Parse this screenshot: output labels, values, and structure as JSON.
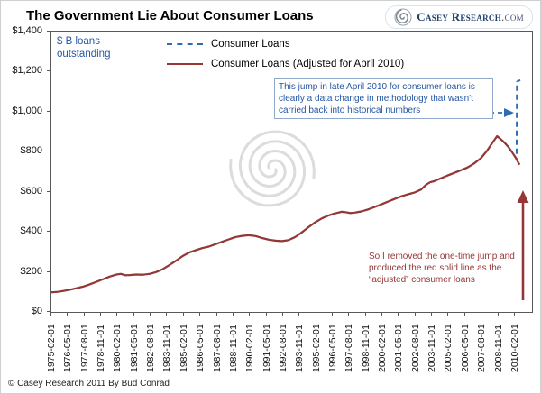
{
  "header": {
    "title": "The Government Lie About Consumer Loans",
    "logo_name": "Casey Research",
    "logo_tld": ".com"
  },
  "footer": {
    "copyright": "© Casey Research 2011 By Bud Conrad"
  },
  "chart_data": {
    "type": "line",
    "title": "The Government Lie About Consumer Loans",
    "ylabel": "$ B loans outstanding",
    "ylabel_lines": [
      "$ B loans",
      "outstanding"
    ],
    "units": "$ billions",
    "ylim": [
      0,
      1400
    ],
    "x_range_years": [
      1975.083,
      2010.5
    ],
    "grid": false,
    "legend_position": "top-inside",
    "y_ticks": [
      {
        "value": 1400,
        "label": "$1,400"
      },
      {
        "value": 1200,
        "label": "$1,200"
      },
      {
        "value": 1000,
        "label": "$1,000"
      },
      {
        "value": 800,
        "label": "$800"
      },
      {
        "value": 600,
        "label": "$600"
      },
      {
        "value": 400,
        "label": "$400"
      },
      {
        "value": 200,
        "label": "$200"
      },
      {
        "value": 0,
        "label": "$0"
      }
    ],
    "x_ticks": [
      "1975-02-01",
      "1976-05-01",
      "1977-08-01",
      "1978-11-01",
      "1980-02-01",
      "1981-05-01",
      "1982-08-01",
      "1983-11-01",
      "1985-02-01",
      "1986-05-01",
      "1987-08-01",
      "1988-11-01",
      "1990-02-01",
      "1991-05-01",
      "1992-08-01",
      "1993-11-01",
      "1995-02-01",
      "1996-05-01",
      "1997-08-01",
      "1998-11-01",
      "2000-02-01",
      "2001-05-01",
      "2002-08-01",
      "2003-11-01",
      "2005-02-01",
      "2006-05-01",
      "2007-08-01",
      "2008-11-01",
      "2010-02-01"
    ],
    "legend": [
      {
        "label": "Consumer Loans",
        "color": "#2e6db4",
        "style": "dashed"
      },
      {
        "label": "Consumer Loans (Adjusted for April 2010)",
        "color": "#953735",
        "style": "solid"
      }
    ],
    "shared_history_points": [
      [
        1975.08,
        98
      ],
      [
        1975.5,
        100
      ],
      [
        1976.0,
        105
      ],
      [
        1976.5,
        111
      ],
      [
        1977.0,
        119
      ],
      [
        1977.5,
        127
      ],
      [
        1978.0,
        138
      ],
      [
        1978.5,
        151
      ],
      [
        1979.0,
        164
      ],
      [
        1979.5,
        177
      ],
      [
        1980.0,
        187
      ],
      [
        1980.33,
        190
      ],
      [
        1980.67,
        183
      ],
      [
        1981.0,
        184
      ],
      [
        1981.5,
        187
      ],
      [
        1982.0,
        186
      ],
      [
        1982.5,
        190
      ],
      [
        1983.0,
        199
      ],
      [
        1983.5,
        214
      ],
      [
        1984.0,
        234
      ],
      [
        1984.5,
        256
      ],
      [
        1985.0,
        279
      ],
      [
        1985.5,
        297
      ],
      [
        1986.0,
        309
      ],
      [
        1986.5,
        319
      ],
      [
        1987.0,
        327
      ],
      [
        1987.5,
        339
      ],
      [
        1988.0,
        351
      ],
      [
        1988.5,
        363
      ],
      [
        1989.0,
        374
      ],
      [
        1989.5,
        380
      ],
      [
        1990.0,
        383
      ],
      [
        1990.5,
        379
      ],
      [
        1991.0,
        369
      ],
      [
        1991.5,
        361
      ],
      [
        1992.0,
        356
      ],
      [
        1992.5,
        354
      ],
      [
        1993.0,
        359
      ],
      [
        1993.5,
        374
      ],
      [
        1994.0,
        397
      ],
      [
        1994.5,
        423
      ],
      [
        1995.0,
        447
      ],
      [
        1995.5,
        467
      ],
      [
        1996.0,
        481
      ],
      [
        1996.5,
        492
      ],
      [
        1997.0,
        500
      ],
      [
        1997.33,
        498
      ],
      [
        1997.67,
        494
      ],
      [
        1998.0,
        496
      ],
      [
        1998.5,
        502
      ],
      [
        1999.0,
        512
      ],
      [
        1999.5,
        524
      ],
      [
        2000.0,
        537
      ],
      [
        2000.5,
        551
      ],
      [
        2001.0,
        564
      ],
      [
        2001.5,
        577
      ],
      [
        2002.0,
        587
      ],
      [
        2002.5,
        596
      ],
      [
        2003.0,
        611
      ],
      [
        2003.4,
        636
      ],
      [
        2003.7,
        648
      ],
      [
        2004.0,
        653
      ],
      [
        2004.5,
        667
      ],
      [
        2005.0,
        681
      ],
      [
        2005.5,
        694
      ],
      [
        2006.0,
        707
      ],
      [
        2006.5,
        721
      ],
      [
        2007.0,
        741
      ],
      [
        2007.5,
        766
      ],
      [
        2008.0,
        806
      ],
      [
        2008.4,
        846
      ],
      [
        2008.75,
        878
      ],
      [
        2009.0,
        864
      ],
      [
        2009.3,
        846
      ],
      [
        2009.6,
        824
      ],
      [
        2009.9,
        796
      ],
      [
        2010.08,
        778
      ],
      [
        2010.17,
        768
      ]
    ],
    "series": [
      {
        "name": "Consumer Loans",
        "style": "dashed",
        "color": "#2e6db4",
        "tail_points": [
          [
            2010.22,
            770
          ],
          [
            2010.25,
            1150
          ],
          [
            2010.5,
            1158
          ]
        ]
      },
      {
        "name": "Consumer Loans (Adjusted for April 2010)",
        "style": "solid",
        "color": "#953735",
        "tail_points": [
          [
            2010.25,
            758
          ],
          [
            2010.33,
            748
          ],
          [
            2010.45,
            735
          ]
        ]
      }
    ],
    "annotations": {
      "blue_note": "This jump in late April 2010 for consumer loans is clearly a data change in methodology that wasn't carried back into historical numbers",
      "red_note": "So I removed the one-time jump and produced the red solid line as the “adjusted” consumer loans"
    }
  }
}
